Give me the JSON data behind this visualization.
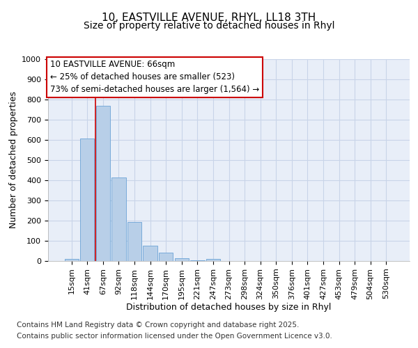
{
  "title_line1": "10, EASTVILLE AVENUE, RHYL, LL18 3TH",
  "title_line2": "Size of property relative to detached houses in Rhyl",
  "xlabel": "Distribution of detached houses by size in Rhyl",
  "ylabel": "Number of detached properties",
  "categories": [
    "15sqm",
    "41sqm",
    "67sqm",
    "92sqm",
    "118sqm",
    "144sqm",
    "170sqm",
    "195sqm",
    "221sqm",
    "247sqm",
    "273sqm",
    "298sqm",
    "324sqm",
    "350sqm",
    "376sqm",
    "401sqm",
    "427sqm",
    "453sqm",
    "479sqm",
    "504sqm",
    "530sqm"
  ],
  "values": [
    12,
    607,
    770,
    415,
    192,
    75,
    40,
    15,
    5,
    12,
    0,
    0,
    0,
    0,
    0,
    0,
    0,
    0,
    0,
    0,
    0
  ],
  "bar_color": "#b8cfe8",
  "bar_edge_color": "#6ba3d6",
  "grid_color": "#c8d4e8",
  "background_color": "#e8eef8",
  "vline_color": "#cc0000",
  "annotation_text": "10 EASTVILLE AVENUE: 66sqm\n← 25% of detached houses are smaller (523)\n73% of semi-detached houses are larger (1,564) →",
  "annotation_box_color": "#ffffff",
  "annotation_box_edge_color": "#cc0000",
  "ylim": [
    0,
    1000
  ],
  "yticks": [
    0,
    100,
    200,
    300,
    400,
    500,
    600,
    700,
    800,
    900,
    1000
  ],
  "footer_line1": "Contains HM Land Registry data © Crown copyright and database right 2025.",
  "footer_line2": "Contains public sector information licensed under the Open Government Licence v3.0.",
  "title_fontsize": 11,
  "subtitle_fontsize": 10,
  "axis_label_fontsize": 9,
  "tick_fontsize": 8,
  "annotation_fontsize": 8.5,
  "footer_fontsize": 7.5,
  "fig_bg": "#ffffff"
}
